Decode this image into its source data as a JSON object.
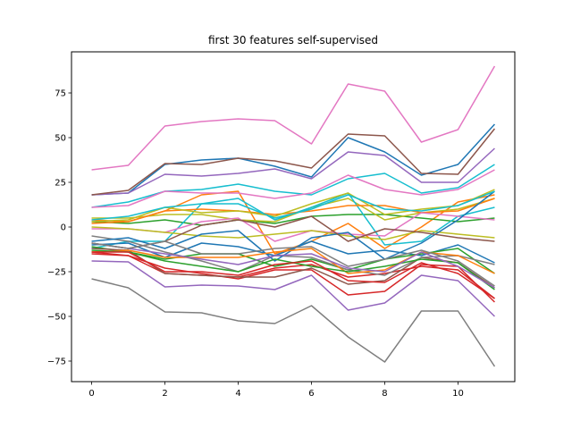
{
  "chart_data": {
    "type": "line",
    "title": "first 30 features self-supervised",
    "xlabel": "",
    "ylabel": "",
    "xlim": [
      -0.55,
      11.55
    ],
    "ylim": [
      -86.5,
      98.0
    ],
    "xticks": [
      0,
      2,
      4,
      6,
      8,
      10
    ],
    "yticks": [
      -75,
      -50,
      -25,
      0,
      25,
      50,
      75
    ],
    "grid": false,
    "x": [
      0,
      1,
      2,
      3,
      4,
      5,
      6,
      7,
      8,
      9,
      10,
      11
    ],
    "series": [
      {
        "color": "#1f77b4",
        "values": [
          18,
          19,
          35,
          37.5,
          38.5,
          34,
          28,
          50,
          42,
          29,
          35,
          57.5
        ]
      },
      {
        "color": "#ff7f0e",
        "values": [
          4,
          3,
          9,
          18,
          20,
          -15,
          -8,
          2,
          -12,
          0,
          14,
          18
        ]
      },
      {
        "color": "#2ca02c",
        "values": [
          3,
          2,
          4,
          1,
          4,
          2,
          6,
          7,
          7,
          5,
          3,
          5
        ]
      },
      {
        "color": "#d62728",
        "values": [
          -15,
          -16,
          -26,
          -27,
          -28,
          -23,
          -21,
          -28,
          -26,
          -22,
          -24,
          -40
        ]
      },
      {
        "color": "#9467bd",
        "values": [
          18,
          19,
          29.5,
          28.5,
          30,
          32.5,
          27,
          42,
          40,
          25,
          25,
          44
        ]
      },
      {
        "color": "#8c564b",
        "values": [
          18,
          20.5,
          35.5,
          35,
          38.5,
          37,
          33,
          52,
          51,
          30,
          29.5,
          55
        ]
      },
      {
        "color": "#e377c2",
        "values": [
          32,
          34.5,
          56.5,
          59,
          60.5,
          59.5,
          46.5,
          80,
          76,
          47.5,
          54.5,
          90
        ]
      },
      {
        "color": "#7f7f7f",
        "values": [
          -29,
          -34,
          -47.5,
          -48,
          -52.5,
          -54,
          -44,
          -61.5,
          -75.5,
          -47,
          -47,
          -78
        ]
      },
      {
        "color": "#bcbd22",
        "values": [
          5,
          5,
          7,
          7,
          4,
          3,
          11,
          16,
          4,
          8,
          10,
          16
        ]
      },
      {
        "color": "#17becf",
        "values": [
          -12,
          -8,
          -8,
          13,
          16,
          4,
          11,
          19,
          -10,
          -8,
          6,
          11
        ]
      },
      {
        "color": "#1f77b4",
        "values": [
          -10,
          -9,
          -17,
          -9,
          -11,
          -16,
          -8,
          -15,
          -13,
          -16,
          -10,
          -20
        ]
      },
      {
        "color": "#ff7f0e",
        "values": [
          2,
          3,
          9,
          10,
          9,
          7,
          9,
          12,
          12,
          8,
          9,
          16
        ]
      },
      {
        "color": "#2ca02c",
        "values": [
          -11,
          -14,
          -18,
          -15,
          -15,
          -22,
          -18,
          -24,
          -18,
          -15,
          -12,
          -26
        ]
      },
      {
        "color": "#d62728",
        "values": [
          -14,
          -16,
          -23,
          -26,
          -29,
          -24,
          -24,
          -38,
          -36,
          -21,
          -22,
          -42
        ]
      },
      {
        "color": "#9467bd",
        "values": [
          -19,
          -19.5,
          -33.5,
          -32.5,
          -33,
          -35,
          -27,
          -46.5,
          -42.5,
          -27,
          -30,
          -50
        ]
      },
      {
        "color": "#8c564b",
        "values": [
          -12,
          -13,
          -26,
          -27,
          -28,
          -28,
          -23,
          -32,
          -30,
          -17,
          -20,
          -34
        ]
      },
      {
        "color": "#e377c2",
        "values": [
          -1,
          -1,
          -3,
          3,
          5,
          -8,
          -2,
          -4,
          -5,
          8,
          6,
          4
        ]
      },
      {
        "color": "#7f7f7f",
        "values": [
          -5,
          -8,
          -14,
          -19,
          -25,
          -16,
          -17,
          -24,
          -27,
          -17,
          -16,
          -21
        ]
      },
      {
        "color": "#bcbd22",
        "values": [
          0,
          -1,
          -3,
          -5,
          -6,
          -4,
          -2,
          -5,
          -7,
          -2,
          -4,
          -6
        ]
      },
      {
        "color": "#17becf",
        "values": [
          11,
          14,
          20,
          21,
          24,
          20,
          18,
          27,
          30,
          19,
          22,
          35
        ]
      },
      {
        "color": "#1f77b4",
        "values": [
          -8,
          -6,
          -12,
          -4,
          -2,
          -19,
          -6,
          -3,
          -18,
          -9,
          4,
          20
        ]
      },
      {
        "color": "#ff7f0e",
        "values": [
          -14,
          -13,
          -17,
          -17,
          -17,
          -14,
          -12,
          -26,
          -24,
          -14,
          -16,
          -26
        ]
      },
      {
        "color": "#2ca02c",
        "values": [
          -13,
          -14,
          -19,
          -22,
          -25,
          -18,
          -22,
          -25,
          -22,
          -18,
          -20,
          -35
        ]
      },
      {
        "color": "#d62728",
        "values": [
          -14,
          -14,
          -25,
          -25,
          -27,
          -21,
          -19,
          -30,
          -31,
          -20,
          -26,
          -40
        ]
      },
      {
        "color": "#9467bd",
        "values": [
          -9,
          -12,
          -15,
          -18,
          -21,
          -16,
          -15,
          -23,
          -25,
          -14,
          -22,
          -34
        ]
      },
      {
        "color": "#8c564b",
        "values": [
          -9,
          -12,
          -8,
          1,
          4,
          0,
          6,
          -8,
          -1,
          -3,
          -6,
          -8
        ]
      },
      {
        "color": "#e377c2",
        "values": [
          11,
          12,
          20,
          19,
          19,
          16,
          19,
          29,
          21,
          18,
          21,
          32
        ]
      },
      {
        "color": "#7f7f7f",
        "values": [
          -9,
          -12,
          -8,
          -15,
          -15,
          -12,
          -11,
          -22,
          -18,
          -13,
          -19,
          -33
        ]
      },
      {
        "color": "#bcbd22",
        "values": [
          3,
          4,
          11,
          8,
          9,
          6,
          13,
          19,
          7,
          10,
          12,
          21
        ]
      },
      {
        "color": "#17becf",
        "values": [
          4,
          6,
          11,
          13,
          13,
          5,
          10,
          18,
          10,
          9,
          12,
          20
        ]
      }
    ]
  }
}
